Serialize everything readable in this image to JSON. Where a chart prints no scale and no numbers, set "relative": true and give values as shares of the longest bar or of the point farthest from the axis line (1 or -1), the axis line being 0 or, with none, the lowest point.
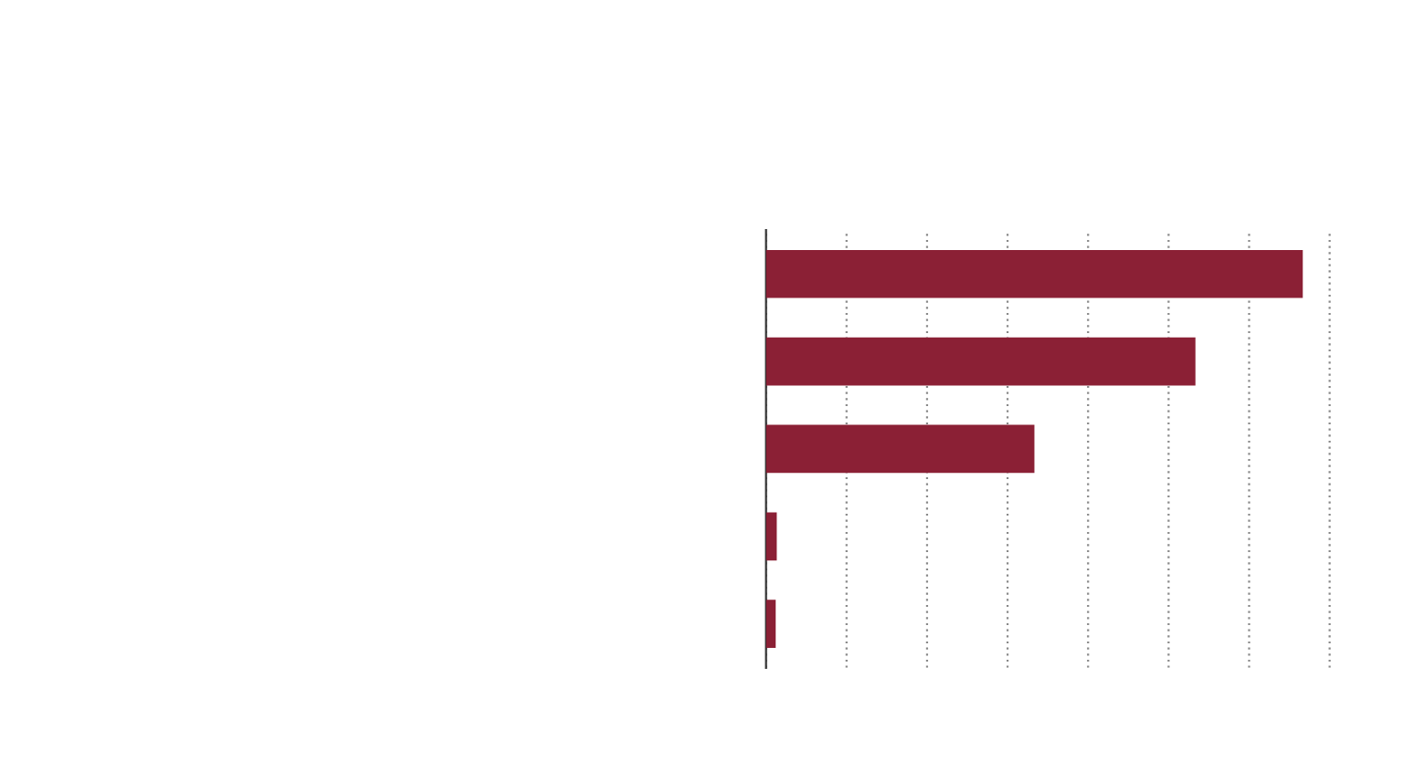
{
  "chart_data": {
    "type": "bar",
    "orientation": "horizontal",
    "relative": true,
    "categories": [
      null,
      null,
      null,
      null,
      null
    ],
    "values": [
      1,
      0.8,
      0.5,
      0.02,
      0.018
    ],
    "color": "#8b2035",
    "grid": "x",
    "legend": false
  }
}
